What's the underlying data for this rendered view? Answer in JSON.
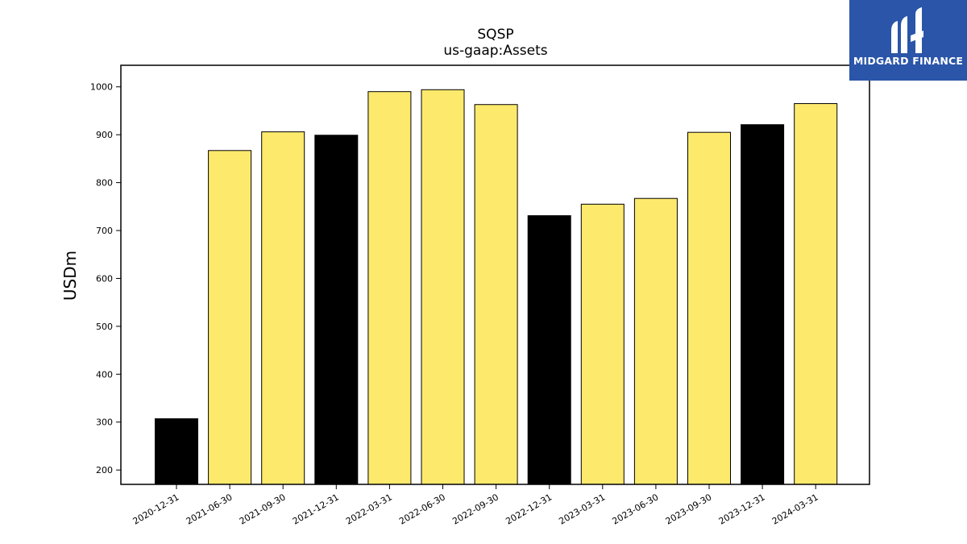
{
  "chart_data": {
    "type": "bar",
    "title": "SQSP",
    "subtitle": "us-gaap:Assets",
    "xlabel": "",
    "ylabel": "USDm",
    "categories": [
      "2020-12-31",
      "2021-06-30",
      "2021-09-30",
      "2021-12-31",
      "2022-03-31",
      "2022-06-30",
      "2022-09-30",
      "2022-12-31",
      "2023-03-31",
      "2023-06-30",
      "2023-09-30",
      "2023-12-31",
      "2024-03-31"
    ],
    "values": [
      307,
      867,
      906,
      899,
      990,
      994,
      963,
      731,
      755,
      767,
      905,
      921,
      965
    ],
    "period_type": [
      "annual",
      "quarterly",
      "quarterly",
      "annual",
      "quarterly",
      "quarterly",
      "quarterly",
      "annual",
      "quarterly",
      "quarterly",
      "quarterly",
      "annual",
      "quarterly"
    ],
    "colors": {
      "annual": "#000000",
      "quarterly": "#fdea6d"
    },
    "ylim": [
      170,
      1045
    ],
    "yticks": [
      200,
      300,
      400,
      500,
      600,
      700,
      800,
      900,
      1000
    ],
    "grid": false,
    "legend": "none"
  },
  "logo": {
    "text": "MIDGARD FINANCE",
    "background": "#2a55a8"
  }
}
